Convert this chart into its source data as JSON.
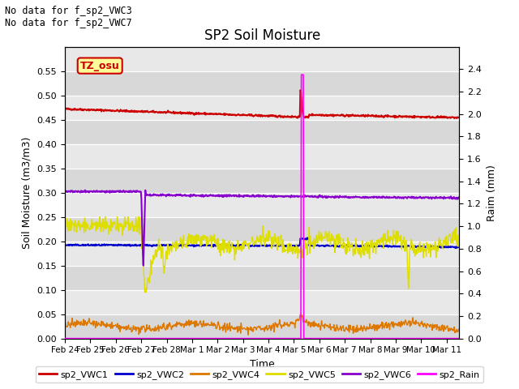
{
  "title": "SP2 Soil Moisture",
  "xlabel": "Time",
  "ylabel_left": "Soil Moisture (m3/m3)",
  "ylabel_right": "Raim (mm)",
  "no_data_text": [
    "No data for f_sp2_VWC3",
    "No data for f_sp2_VWC7"
  ],
  "tz_label": "TZ_osu",
  "xlim_days": [
    0,
    15.5
  ],
  "ylim_left": [
    0.0,
    0.6
  ],
  "ylim_right": [
    0.0,
    2.6
  ],
  "yticks_left": [
    0.0,
    0.05,
    0.1,
    0.15,
    0.2,
    0.25,
    0.3,
    0.35,
    0.4,
    0.45,
    0.5,
    0.55
  ],
  "yticks_right": [
    0.0,
    0.2,
    0.4,
    0.6,
    0.8,
    1.0,
    1.2,
    1.4,
    1.6,
    1.8,
    2.0,
    2.2,
    2.4
  ],
  "xtick_labels": [
    "Feb 24",
    "Feb 25",
    "Feb 26",
    "Feb 27",
    "Feb 28",
    "Mar 1",
    "Mar 2",
    "Mar 3",
    "Mar 4",
    "Mar 5",
    "Mar 6",
    "Mar 7",
    "Mar 8",
    "Mar 9",
    "Mar 10",
    "Mar 11"
  ],
  "xtick_positions": [
    0,
    1,
    2,
    3,
    4,
    5,
    6,
    7,
    8,
    9,
    10,
    11,
    12,
    13,
    14,
    15
  ],
  "colors": {
    "sp2_VWC1": "#cc0000",
    "sp2_VWC2": "#0000cc",
    "sp2_VWC4": "#dd7700",
    "sp2_VWC5": "#dddd00",
    "sp2_VWC6": "#8800cc",
    "sp2_Rain": "#ff00ff",
    "bg_dark": "#dcdcdc",
    "bg_light": "#ececec"
  }
}
